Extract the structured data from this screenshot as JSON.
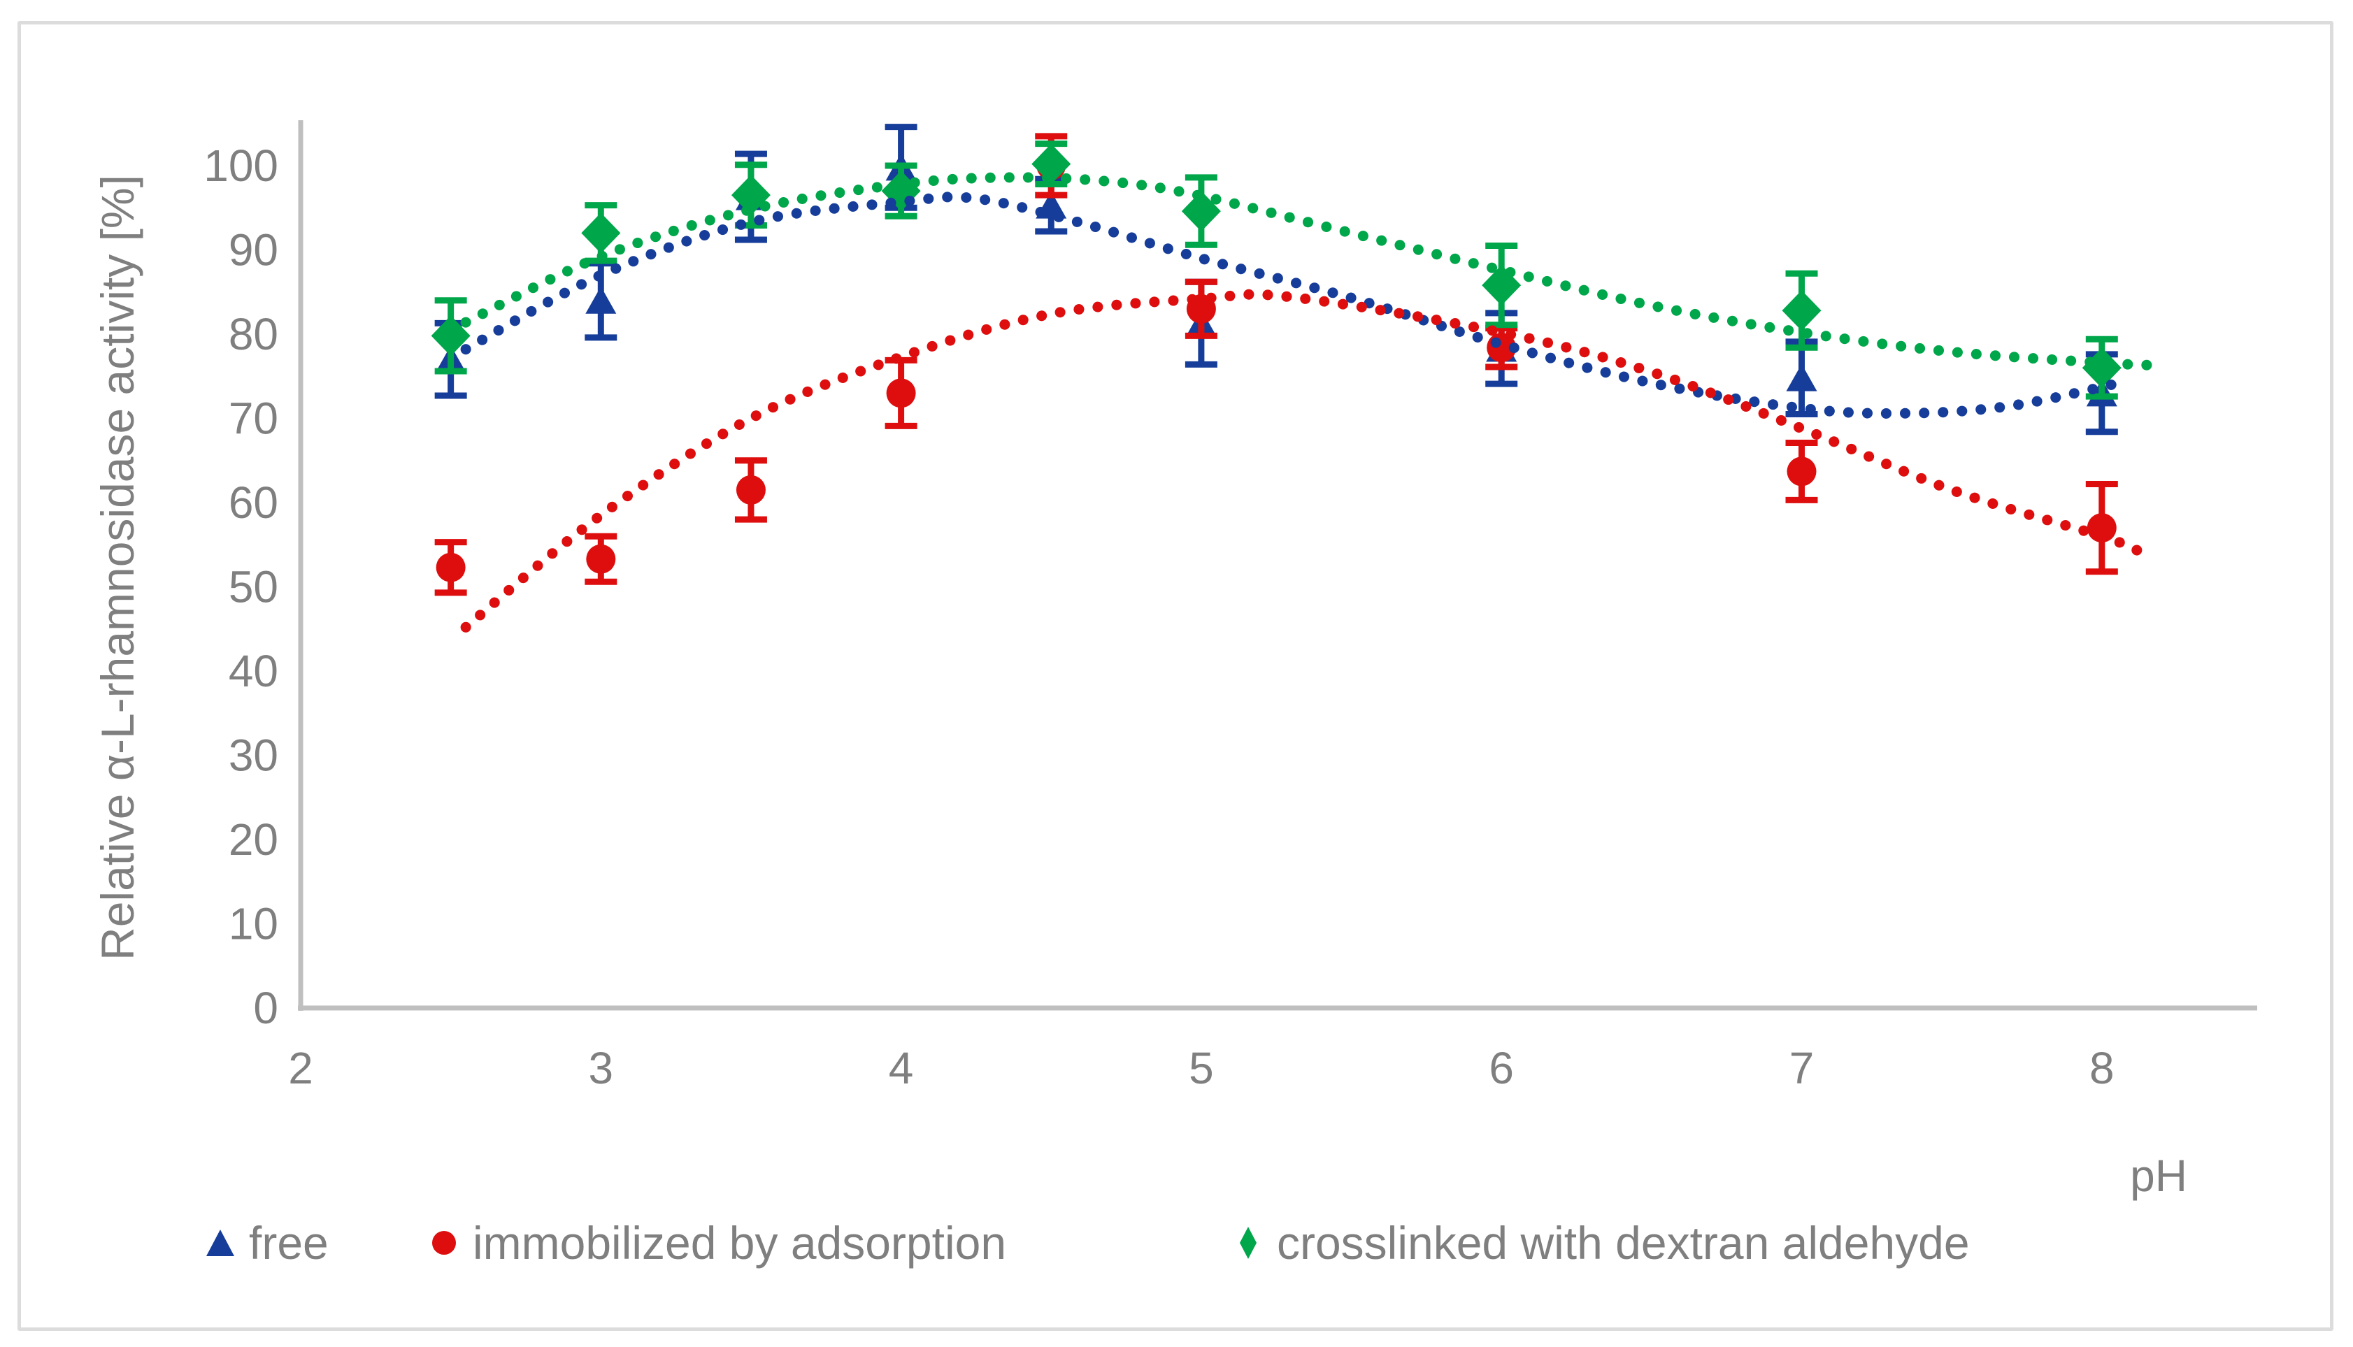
{
  "figure": {
    "y_axis_title": "Relative  α-L-rhamnosidase activity [%]",
    "x_axis_title": "pH"
  },
  "legend": {
    "position": "bottom",
    "items": [
      {
        "label": "free",
        "marker": "triangle",
        "color": "#163D99"
      },
      {
        "label": "immobilized by adsorption",
        "marker": "circle",
        "color": "#DE0E0E"
      },
      {
        "label": "crosslinked with dextran aldehyde",
        "marker": "diamond",
        "color": "#00A64A"
      }
    ]
  },
  "chart_data": {
    "type": "scatter",
    "title": "",
    "xlabel": "pH",
    "ylabel": "Relative α-L-rhamnosidase activity [%]",
    "xlim": [
      2,
      8.5
    ],
    "ylim": [
      0,
      105
    ],
    "grid": false,
    "error_bars": true,
    "trendlines": "dotted",
    "legend_position": "bottom",
    "x_ticks": [
      2,
      3,
      4,
      5,
      6,
      7,
      8
    ],
    "y_ticks": [
      0,
      10,
      20,
      30,
      40,
      50,
      60,
      70,
      80,
      90,
      100
    ],
    "x": [
      2.5,
      3,
      3.5,
      4,
      4.5,
      5,
      6,
      7,
      8
    ],
    "series": [
      {
        "name": "free",
        "marker": "triangle",
        "color": "#163D99",
        "values": [
          77,
          84,
          96.3,
          99.8,
          95.3,
          81.3,
          78.3,
          74.8,
          73
        ],
        "errors": [
          4.3,
          4.4,
          5.1,
          4.8,
          3.1,
          4.9,
          4.2,
          4.3,
          4.6
        ],
        "trend": [
          [
            2.55,
            78.2
          ],
          [
            3,
            87
          ],
          [
            3.5,
            93.3
          ],
          [
            4,
            95.7
          ],
          [
            4.25,
            96.1
          ],
          [
            4.6,
            93.2
          ],
          [
            5,
            89
          ],
          [
            5.5,
            84.3
          ],
          [
            6,
            78.8
          ],
          [
            6.5,
            74.2
          ],
          [
            7,
            71.2
          ],
          [
            7.35,
            70.6
          ],
          [
            7.7,
            71.5
          ],
          [
            8.07,
            74.3
          ]
        ]
      },
      {
        "name": "immobilized by adsorption",
        "marker": "circle",
        "color": "#DE0E0E",
        "values": [
          52.3,
          53.3,
          61.5,
          73,
          100,
          83,
          78.4,
          63.7,
          57
        ],
        "errors": [
          3.0,
          2.7,
          3.5,
          3.9,
          3.5,
          3.2,
          2.3,
          3.4,
          5.2
        ],
        "trend": [
          [
            2.55,
            45.2
          ],
          [
            3,
            58.5
          ],
          [
            3.5,
            70
          ],
          [
            4,
            77.3
          ],
          [
            4.5,
            82.4
          ],
          [
            5,
            84.2
          ],
          [
            5.3,
            84.4
          ],
          [
            6,
            80.2
          ],
          [
            6.5,
            75.5
          ],
          [
            7,
            68.8
          ],
          [
            7.5,
            61.5
          ],
          [
            8,
            56
          ],
          [
            8.12,
            54.3
          ]
        ]
      },
      {
        "name": "crosslinked with dextran aldehyde",
        "marker": "diamond",
        "color": "#00A64A",
        "values": [
          79.8,
          92,
          96.5,
          97,
          100.2,
          94.6,
          85.8,
          82.8,
          76
        ],
        "errors": [
          4.2,
          3.3,
          3.6,
          3.0,
          2.4,
          4.0,
          4.7,
          4.4,
          3.4
        ],
        "trend": [
          [
            2.55,
            81.4
          ],
          [
            3,
            89.2
          ],
          [
            3.5,
            94.8
          ],
          [
            4,
            97.8
          ],
          [
            4.35,
            98.6
          ],
          [
            4.7,
            98.1
          ],
          [
            5,
            96.4
          ],
          [
            5.5,
            92
          ],
          [
            6,
            87.6
          ],
          [
            6.5,
            83.4
          ],
          [
            7,
            80.2
          ],
          [
            7.5,
            77.9
          ],
          [
            8,
            76.6
          ],
          [
            8.17,
            76.3
          ]
        ]
      }
    ]
  }
}
